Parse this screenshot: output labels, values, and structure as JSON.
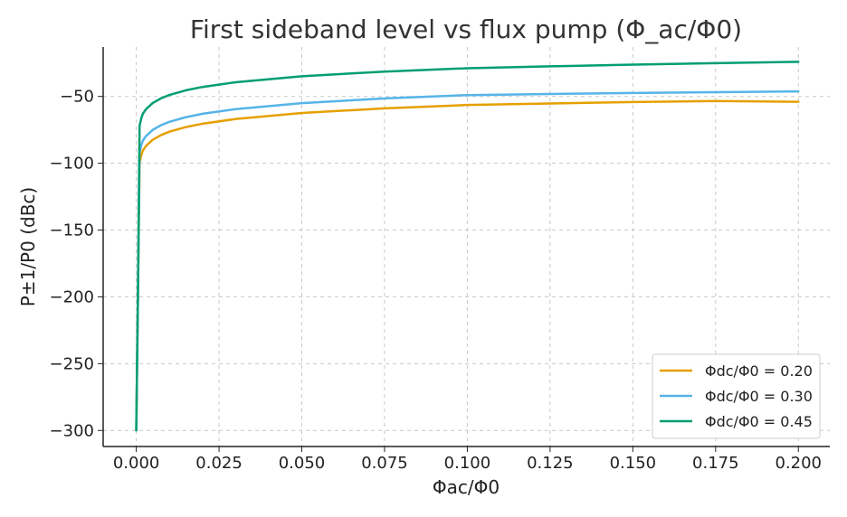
{
  "chart_data": {
    "type": "line",
    "title": "First sideband level vs flux pump (Φ_ac/Φ0)",
    "xlabel": "Φac/Φ0",
    "ylabel": "P±1/P0 (dBc)",
    "xlim": [
      -0.01,
      0.2095
    ],
    "ylim": [
      -312,
      -13
    ],
    "xticks": [
      0.0,
      0.025,
      0.05,
      0.075,
      0.1,
      0.125,
      0.15,
      0.175,
      0.2
    ],
    "xtick_labels": [
      "0.000",
      "0.025",
      "0.050",
      "0.075",
      "0.100",
      "0.125",
      "0.150",
      "0.175",
      "0.200"
    ],
    "yticks": [
      -300,
      -250,
      -200,
      -150,
      -100,
      -50
    ],
    "ytick_labels": [
      "−300",
      "−250",
      "−200",
      "−150",
      "−100",
      "−50"
    ],
    "grid": true,
    "legend_position": "bottom-right",
    "series": [
      {
        "name": "Φdc/Φ0 = 0.20",
        "color": "#E69F00",
        "x": [
          0.0,
          0.0005,
          0.001,
          0.0015,
          0.002,
          0.003,
          0.005,
          0.0075,
          0.01,
          0.015,
          0.02,
          0.03,
          0.05,
          0.075,
          0.1,
          0.125,
          0.15,
          0.175,
          0.2
        ],
        "y": [
          -300,
          -200,
          -100,
          -94,
          -90.4,
          -86.9,
          -82.4,
          -78.9,
          -76.4,
          -72.9,
          -70.4,
          -66.9,
          -62.4,
          -58.9,
          -56.4,
          -55.3,
          -54.2,
          -53.4,
          -54.0
        ]
      },
      {
        "name": "Φdc/Φ0 = 0.30",
        "color": "#56B4E9",
        "x": [
          0.0,
          0.0005,
          0.001,
          0.0015,
          0.002,
          0.003,
          0.005,
          0.0075,
          0.01,
          0.015,
          0.02,
          0.03,
          0.05,
          0.075,
          0.1,
          0.125,
          0.15,
          0.175,
          0.2
        ],
        "y": [
          -300,
          -200,
          -92,
          -86.5,
          -83,
          -79.5,
          -75,
          -71.5,
          -69,
          -65.5,
          -63,
          -59.5,
          -55,
          -51.5,
          -49,
          -48.2,
          -47.4,
          -46.8,
          -46.2
        ]
      },
      {
        "name": "Φdc/Φ0 = 0.45",
        "color": "#009E73",
        "x": [
          0.0,
          0.0005,
          0.001,
          0.0015,
          0.002,
          0.003,
          0.005,
          0.0075,
          0.01,
          0.015,
          0.02,
          0.03,
          0.05,
          0.075,
          0.1,
          0.125,
          0.15,
          0.175,
          0.2
        ],
        "y": [
          -300,
          -200,
          -72,
          -66.5,
          -62.9,
          -59.4,
          -54.9,
          -51.4,
          -48.9,
          -45.4,
          -42.9,
          -39.4,
          -34.9,
          -31.4,
          -28.9,
          -27.5,
          -26.2,
          -25.1,
          -24.1
        ]
      }
    ]
  }
}
